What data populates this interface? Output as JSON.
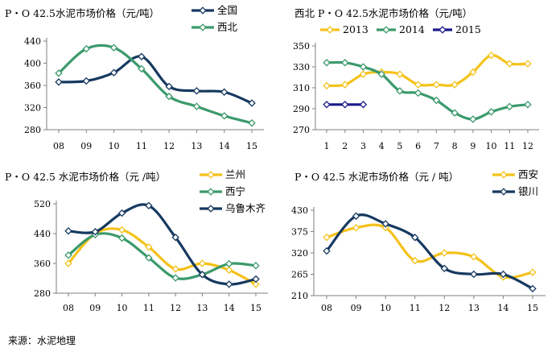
{
  "source": "来源：水泥地理",
  "colors": {
    "navy": "#16395f",
    "green": "#3c9a6c",
    "yellow": "#f4c21b",
    "blue": "#1a1a8a",
    "marker_fill": "#ffffff",
    "axis": "#7f7f7f"
  },
  "chart_data": [
    {
      "type": "line",
      "title": "P・O 42.5水泥市场价格（元/吨）",
      "x": [
        "08",
        "09",
        "10",
        "11",
        "12",
        "13",
        "14",
        "15"
      ],
      "ylim": [
        280,
        440
      ],
      "yticks": [
        280,
        320,
        360,
        400,
        440
      ],
      "series": [
        {
          "name": "全国",
          "color": "#16395f",
          "values": [
            366,
            368,
            383,
            412,
            358,
            350,
            348,
            328
          ]
        },
        {
          "name": "西北",
          "color": "#3c9a6c",
          "values": [
            382,
            426,
            428,
            390,
            340,
            322,
            305,
            292
          ]
        }
      ]
    },
    {
      "type": "line",
      "title": "西北 P・O 42.5水泥市场价格（元/吨）",
      "x": [
        "1",
        "2",
        "3",
        "4",
        "5",
        "6",
        "7",
        "8",
        "9",
        "10",
        "11",
        "12"
      ],
      "ylim": [
        270,
        350
      ],
      "yticks": [
        270,
        290,
        310,
        330,
        350
      ],
      "series": [
        {
          "name": "2013",
          "color": "#f4c21b",
          "values": [
            312,
            313,
            323,
            325,
            323,
            313,
            313,
            313,
            325,
            341,
            333,
            333
          ]
        },
        {
          "name": "2014",
          "color": "#3c9a6c",
          "values": [
            334,
            334,
            330,
            323,
            307,
            305,
            298,
            286,
            280,
            287,
            292,
            294
          ]
        },
        {
          "name": "2015",
          "color": "#1a1a8a",
          "values": [
            294,
            294,
            294,
            null,
            null,
            null,
            null,
            null,
            null,
            null,
            null,
            null
          ]
        }
      ]
    },
    {
      "type": "line",
      "title": "P・O 42.5 水泥市场价格（元 /吨）",
      "x": [
        "08",
        "09",
        "10",
        "11",
        "12",
        "13",
        "14",
        "15"
      ],
      "ylim": [
        280,
        520
      ],
      "yticks": [
        280,
        360,
        440,
        520
      ],
      "series": [
        {
          "name": "兰州",
          "color": "#f4c21b",
          "values": [
            360,
            440,
            450,
            404,
            345,
            360,
            342,
            304
          ]
        },
        {
          "name": "西宁",
          "color": "#3c9a6c",
          "values": [
            382,
            437,
            428,
            375,
            321,
            330,
            359,
            354
          ]
        },
        {
          "name": "乌鲁木齐",
          "color": "#16395f",
          "values": [
            447,
            445,
            495,
            515,
            430,
            330,
            304,
            318
          ]
        }
      ]
    },
    {
      "type": "line",
      "title": "P・O 42.5 水泥市场价格（元 / 吨）",
      "x": [
        "08",
        "09",
        "10",
        "11",
        "12",
        "13",
        "14",
        "15"
      ],
      "ylim": [
        210,
        430
      ],
      "yticks": [
        210,
        265,
        320,
        375,
        430
      ],
      "series": [
        {
          "name": "西安",
          "color": "#f4c21b",
          "values": [
            360,
            385,
            385,
            300,
            320,
            310,
            258,
            270
          ]
        },
        {
          "name": "银川",
          "color": "#16395f",
          "values": [
            325,
            415,
            395,
            360,
            280,
            265,
            265,
            228
          ]
        }
      ]
    }
  ]
}
